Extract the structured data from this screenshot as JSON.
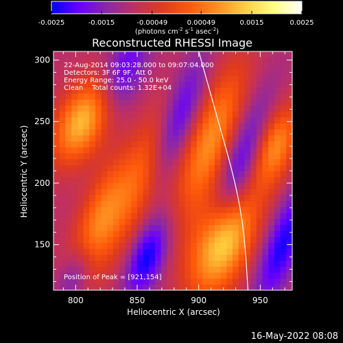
{
  "chart_data": {
    "type": "heatmap",
    "title": "Reconstructed RHESSI Image",
    "xlabel": "Heliocentric X (arcsec)",
    "ylabel": "Heliocentric Y (arcsec)",
    "xlim": [
      782,
      976
    ],
    "ylim": [
      113,
      307
    ],
    "xticks": [
      800,
      850,
      900,
      950
    ],
    "yticks": [
      150,
      200,
      250,
      300
    ],
    "colorbar": {
      "orientation": "horizontal",
      "range": [
        -0.0025,
        0.0025
      ],
      "ticks": [
        -0.0025,
        -0.0015,
        -0.00049,
        0.00049,
        0.0015,
        0.0025
      ],
      "tick_labels": [
        "-0.0025",
        "-0.0015",
        "-0.00049",
        "0.00049",
        "0.0015",
        "0.0025"
      ],
      "unit_label_parts": [
        "(photons cm",
        "-2",
        " s",
        "-1",
        " asec",
        "-2",
        ")"
      ],
      "colormap": [
        "#0000ff",
        "#6a00ff",
        "#8a28a8",
        "#c03060",
        "#e03b1c",
        "#ff5a0a",
        "#ff9020",
        "#ffd040",
        "#ffff80",
        "#ffffff"
      ]
    },
    "annotations": {
      "time": "22-Aug-2014 09:03:28.000 to 09:07:04.000",
      "detectors": "Detectors: 3F 6F 9F, Att 0",
      "energy": "Energy Range: 25.0 - 50.0 keV",
      "clean_counts": "Clean    Total counts: 1.32E+04",
      "peak": "Position of Peak = [921,154]"
    },
    "limb_curve": {
      "points": [
        [
          900,
          307
        ],
        [
          916,
          250
        ],
        [
          930,
          200
        ],
        [
          937,
          160
        ],
        [
          940,
          113
        ]
      ]
    },
    "sources": [
      {
        "x": 805,
        "y": 250,
        "sx": 14,
        "sy": 25,
        "amp": 0.0021,
        "angle": 65
      },
      {
        "x": 818,
        "y": 165,
        "sx": 12,
        "sy": 40,
        "amp": 0.0016,
        "angle": 70
      },
      {
        "x": 856,
        "y": 208,
        "sx": 12,
        "sy": 44,
        "amp": 0.00125,
        "angle": 70
      },
      {
        "x": 910,
        "y": 235,
        "sx": 13,
        "sy": 45,
        "amp": 0.0017,
        "angle": 70
      },
      {
        "x": 919,
        "y": 153,
        "sx": 16,
        "sy": 32,
        "amp": 0.0026,
        "angle": 68
      },
      {
        "x": 961,
        "y": 230,
        "sx": 12,
        "sy": 25,
        "amp": 0.0018,
        "angle": 70
      },
      {
        "x": 858,
        "y": 140,
        "sx": 10,
        "sy": 24,
        "amp": -0.0016,
        "angle": 70
      },
      {
        "x": 882,
        "y": 250,
        "sx": 10,
        "sy": 38,
        "amp": -0.0014,
        "angle": 70
      },
      {
        "x": 935,
        "y": 215,
        "sx": 11,
        "sy": 42,
        "amp": -0.0015,
        "angle": 70
      },
      {
        "x": 968,
        "y": 150,
        "sx": 10,
        "sy": 35,
        "amp": -0.0015,
        "angle": 70
      },
      {
        "x": 800,
        "y": 125,
        "sx": 9,
        "sy": 20,
        "amp": -0.0012,
        "angle": 70
      },
      {
        "x": 840,
        "y": 292,
        "sx": 11,
        "sy": 25,
        "amp": -0.0011,
        "angle": 70
      }
    ]
  },
  "footer": {
    "timestamp": "16-May-2022 08:08"
  }
}
